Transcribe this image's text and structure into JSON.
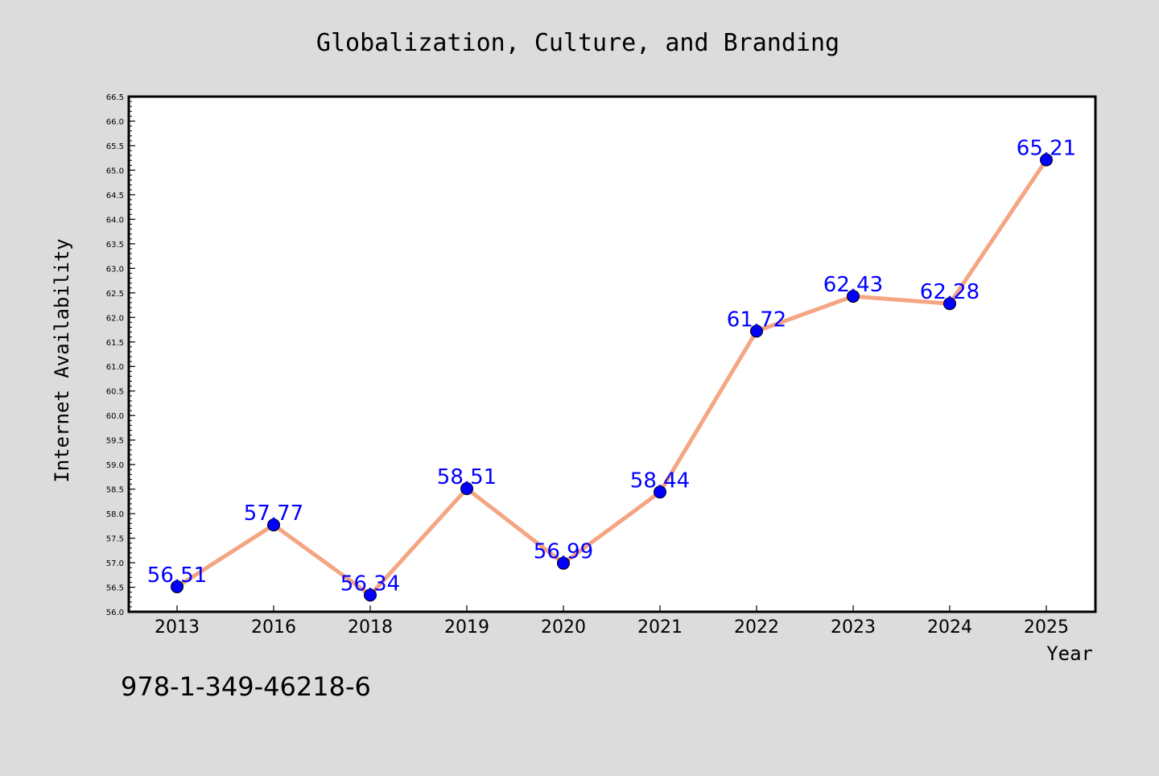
{
  "chart_data": {
    "type": "line",
    "title": "Globalization, Culture, and Branding",
    "xlabel": "Year",
    "ylabel": "Internet Availability",
    "categories": [
      "2013",
      "2016",
      "2018",
      "2019",
      "2020",
      "2021",
      "2022",
      "2023",
      "2024",
      "2025"
    ],
    "series": [
      {
        "values": [
          56.51,
          57.77,
          56.34,
          58.51,
          56.99,
          58.44,
          61.72,
          62.43,
          62.28,
          65.21
        ]
      }
    ],
    "data_labels": [
      "56.51",
      "57.77",
      "56.34",
      "58.51",
      "56.99",
      "58.44",
      "61.72",
      "62.43",
      "62.28",
      "65.21"
    ],
    "ylim": [
      56.0,
      66.5
    ],
    "yticks": [
      "56.0",
      "56.5",
      "57.0",
      "57.5",
      "58.0",
      "58.5",
      "59.0",
      "59.5",
      "60.0",
      "60.5",
      "61.0",
      "61.5",
      "62.0",
      "62.5",
      "63.0",
      "63.5",
      "64.0",
      "64.5",
      "65.0",
      "65.5",
      "66.0",
      "66.5"
    ],
    "grid": false,
    "line_color": "#f4a582",
    "marker_color": "#0000ff",
    "label_color": "#0000ff",
    "background": "#dcdcdc",
    "plot_background": "#ffffff"
  },
  "annotation": "978-1-349-46218-6"
}
